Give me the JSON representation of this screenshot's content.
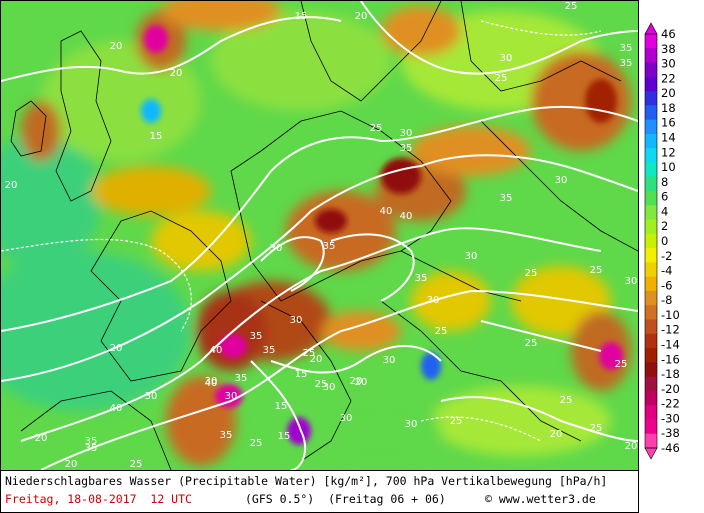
{
  "title_line": "Niederschlagbares Wasser (Precipitable Water) [kg/m²], 700 hPa Vertikalbewegung [hPa/h]",
  "date_line": "Freitag, 18-08-2017  12 UTC",
  "model_line": "(GFS 0.5°)  (Freitag 06 + 06)",
  "copyright_line": "© www.wetter3.de",
  "colorbar": {
    "labels": [
      "46",
      "38",
      "30",
      "22",
      "20",
      "18",
      "16",
      "14",
      "12",
      "10",
      "8",
      "6",
      "4",
      "2",
      "0",
      "-2",
      "-4",
      "-6",
      "-8",
      "-10",
      "-12",
      "-14",
      "-16",
      "-18",
      "-20",
      "-22",
      "-30",
      "-38",
      "-46"
    ],
    "colors": [
      "#e000e0",
      "#b000d0",
      "#8000c8",
      "#6000d0",
      "#3030e0",
      "#2060f0",
      "#2090ff",
      "#10b8ff",
      "#10d8f0",
      "#10e8c0",
      "#30e080",
      "#50e050",
      "#80e840",
      "#a0f020",
      "#c8f000",
      "#f0f000",
      "#f0d000",
      "#f0b000",
      "#e09020",
      "#d07020",
      "#c05020",
      "#b03010",
      "#a02000",
      "#901010",
      "#a01040",
      "#c00060",
      "#e00080",
      "#f00090",
      "#ff40b0"
    ],
    "top_color": "#e000e0",
    "bottom_color": "#ff40b0"
  },
  "contour_labels": [
    "15",
    "20",
    "25",
    "30",
    "35",
    "40"
  ],
  "map_labels": [
    {
      "t": "15"
    },
    {
      "t": "20"
    },
    {
      "t": "20"
    },
    {
      "t": "20"
    },
    {
      "t": "25"
    },
    {
      "t": "25"
    },
    {
      "t": "35"
    },
    {
      "t": "35"
    },
    {
      "t": "30"
    },
    {
      "t": "15"
    },
    {
      "t": "20"
    },
    {
      "t": "25"
    },
    {
      "t": "30"
    },
    {
      "t": "35"
    },
    {
      "t": "30"
    },
    {
      "t": "40"
    },
    {
      "t": "40"
    },
    {
      "t": "35"
    },
    {
      "t": "35"
    },
    {
      "t": "30"
    },
    {
      "t": "30"
    },
    {
      "t": "35"
    },
    {
      "t": "30"
    },
    {
      "t": "25"
    },
    {
      "t": "25"
    },
    {
      "t": "30"
    },
    {
      "t": "30"
    },
    {
      "t": "25"
    },
    {
      "t": "35"
    },
    {
      "t": "40"
    },
    {
      "t": "35"
    },
    {
      "t": "30"
    },
    {
      "t": "15"
    },
    {
      "t": "20"
    },
    {
      "t": "25"
    },
    {
      "t": "15"
    },
    {
      "t": "25"
    },
    {
      "t": "30"
    },
    {
      "t": "30"
    },
    {
      "t": "15"
    },
    {
      "t": "20"
    },
    {
      "t": "25"
    },
    {
      "t": "30"
    },
    {
      "t": "20"
    },
    {
      "t": "25"
    },
    {
      "t": "25"
    },
    {
      "t": "25"
    },
    {
      "t": "40"
    },
    {
      "t": "35"
    },
    {
      "t": "20"
    },
    {
      "t": "30"
    },
    {
      "t": "40"
    },
    {
      "t": "30"
    },
    {
      "t": "35"
    },
    {
      "t": "35"
    },
    {
      "t": "25"
    },
    {
      "t": "20"
    },
    {
      "t": "25"
    },
    {
      "t": "25"
    },
    {
      "t": "20"
    },
    {
      "t": "20"
    },
    {
      "t": "20"
    },
    {
      "t": "35"
    },
    {
      "t": "30"
    }
  ]
}
